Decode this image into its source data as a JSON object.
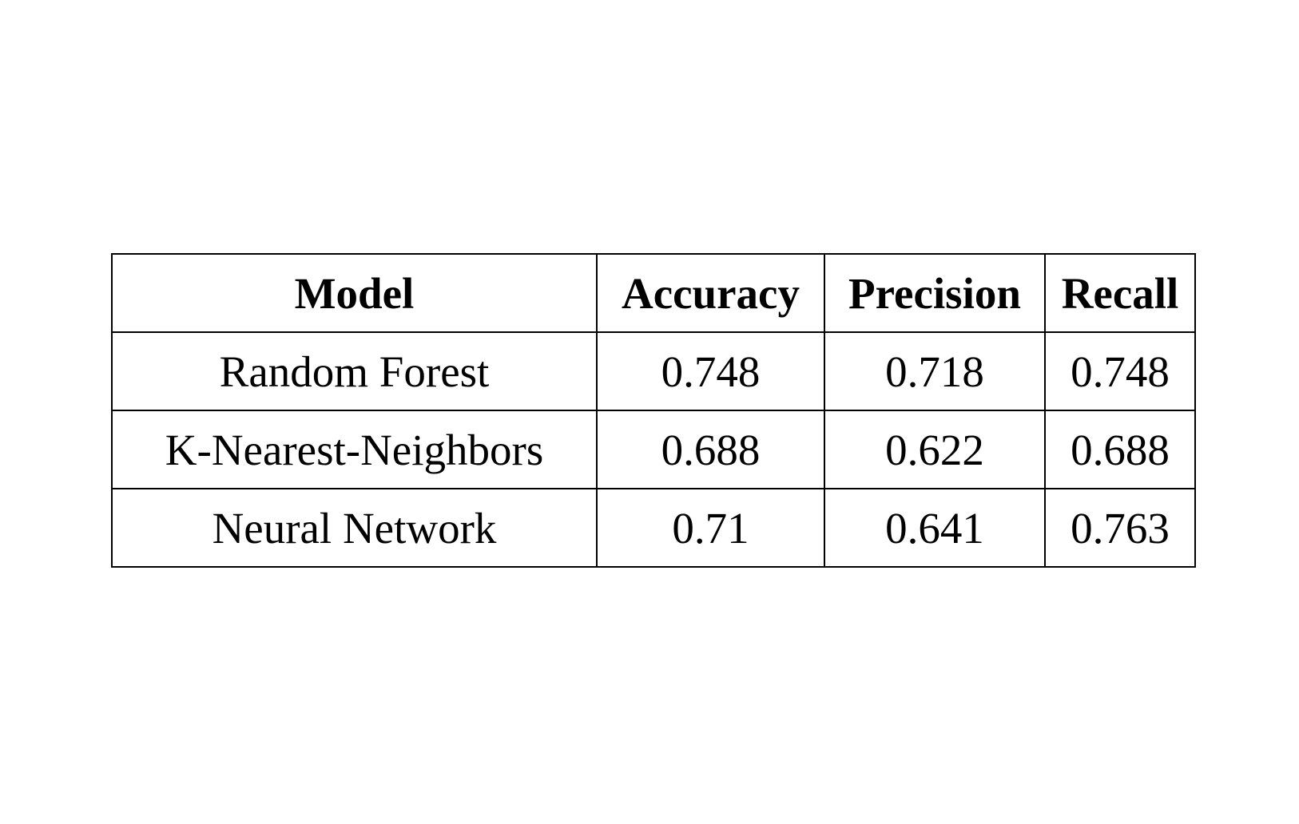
{
  "table": {
    "headers": [
      "Model",
      "Accuracy",
      "Precision",
      "Recall"
    ],
    "rows": [
      [
        "Random Forest",
        "0.748",
        "0.718",
        "0.748"
      ],
      [
        "K-Nearest-Neighbors",
        "0.688",
        "0.622",
        "0.688"
      ],
      [
        "Neural Network",
        "0.71",
        "0.641",
        "0.763"
      ]
    ]
  }
}
